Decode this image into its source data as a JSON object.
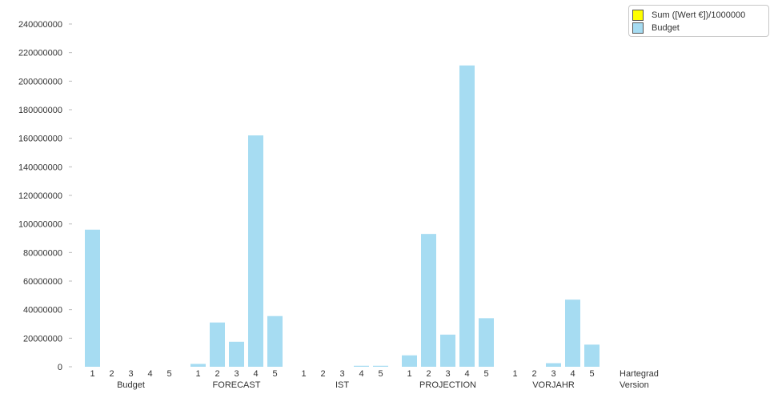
{
  "chart_data": {
    "type": "bar",
    "ylim": [
      0,
      240000000
    ],
    "y_ticks": [
      "0",
      "20000000",
      "40000000",
      "60000000",
      "80000000",
      "100000000",
      "120000000",
      "140000000",
      "160000000",
      "180000000",
      "200000000",
      "220000000",
      "240000000"
    ],
    "x_dimension_labels": [
      "Hartegrad",
      "Version"
    ],
    "groups": [
      {
        "name": "Budget",
        "categories": [
          "1",
          "2",
          "3",
          "4",
          "5"
        ],
        "values": [
          96000000,
          0,
          0,
          0,
          0
        ]
      },
      {
        "name": "FORECAST",
        "categories": [
          "1",
          "2",
          "3",
          "4",
          "5"
        ],
        "values": [
          2000000,
          31000000,
          17500000,
          162000000,
          35500000
        ]
      },
      {
        "name": "IST",
        "categories": [
          "1",
          "2",
          "3",
          "4",
          "5"
        ],
        "values": [
          0,
          0,
          0,
          700000,
          700000
        ]
      },
      {
        "name": "PROJECTION",
        "categories": [
          "1",
          "2",
          "3",
          "4",
          "5"
        ],
        "values": [
          8000000,
          93000000,
          22500000,
          211000000,
          34000000
        ]
      },
      {
        "name": "VORJAHR",
        "categories": [
          "1",
          "2",
          "3",
          "4",
          "5"
        ],
        "values": [
          0,
          0,
          2500000,
          47000000,
          15500000
        ]
      }
    ],
    "legend": [
      {
        "label": "Sum ([Wert €])/1000000",
        "color": "#ffff00"
      },
      {
        "label": "Budget",
        "color": "#a6dcf2"
      }
    ],
    "bar_color": "#a6dcf2",
    "legend_position": "top-right",
    "grid": false
  }
}
